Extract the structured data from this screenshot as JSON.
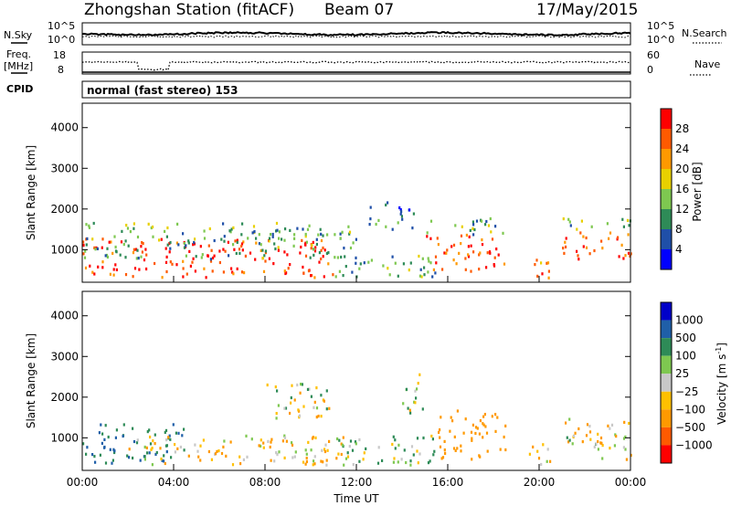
{
  "header": {
    "title": "Zhongshan Station (fitACF)",
    "beam": "Beam 07",
    "date": "17/May/2015"
  },
  "strip": {
    "nsky_label": "N.Sky",
    "nsky_ticks": [
      "10^5",
      "10^0"
    ],
    "nsearch_label": "N.Search",
    "nsearch_ticks": [
      "10^5",
      "10^0"
    ],
    "freq_label": "Freq.",
    "freq_unit": "[MHz]",
    "freq_ticks": [
      "18",
      "8"
    ],
    "nave_label": "Nave",
    "nave_ticks": [
      "60",
      "0"
    ],
    "cpid_label": "CPID",
    "cpid_value": "normal (fast stereo) 153"
  },
  "colors": {
    "power_scale": [
      "#0000ff",
      "#1f4fa8",
      "#2e8b57",
      "#7ec850",
      "#e8d000",
      "#ff9900",
      "#ff5a00",
      "#ff0000"
    ],
    "velocity_scale": [
      "#ff0000",
      "#ff5a00",
      "#ff9900",
      "#ffc000",
      "#c8c8c8",
      "#7ec850",
      "#2e8b57",
      "#1f5fa8",
      "#0000c8"
    ]
  },
  "chart_data": [
    {
      "type": "heatmap",
      "panel": "power",
      "ylabel": "Slant Range [km]",
      "ylim": [
        200,
        4600
      ],
      "y_ticks": [
        "1000",
        "2000",
        "3000",
        "4000"
      ],
      "x_ticks": [
        "00:00",
        "04:00",
        "08:00",
        "12:00",
        "16:00",
        "20:00",
        "00:00"
      ],
      "colorbar": {
        "label": "Power [dB]",
        "ticks": [
          "4",
          "8",
          "12",
          "16",
          "20",
          "24",
          "28"
        ]
      },
      "echo_regions": [
        {
          "t_start": 0.0,
          "t_end": 11.0,
          "range_start": 350,
          "range_end": 1300,
          "level": 28
        },
        {
          "t_start": 0.0,
          "t_end": 12.0,
          "range_start": 800,
          "range_end": 1700,
          "level": 12
        },
        {
          "t_start": 11.0,
          "t_end": 15.5,
          "range_start": 350,
          "range_end": 900,
          "level": 12
        },
        {
          "t_start": 12.5,
          "t_end": 14.5,
          "range_start": 1500,
          "range_end": 2200,
          "level": 8
        },
        {
          "t_start": 15.0,
          "t_end": 18.5,
          "range_start": 500,
          "range_end": 1400,
          "level": 26
        },
        {
          "t_start": 15.0,
          "t_end": 18.5,
          "range_start": 1400,
          "range_end": 1800,
          "level": 12
        },
        {
          "t_start": 19.5,
          "t_end": 20.5,
          "range_start": 250,
          "range_end": 900,
          "level": 24
        },
        {
          "t_start": 21.0,
          "t_end": 24.0,
          "range_start": 800,
          "range_end": 1500,
          "level": 26
        },
        {
          "t_start": 21.0,
          "t_end": 24.0,
          "range_start": 1500,
          "range_end": 1800,
          "level": 12
        }
      ]
    },
    {
      "type": "heatmap",
      "panel": "velocity",
      "xlabel": "Time UT",
      "ylabel": "Slant Range [km]",
      "ylim": [
        200,
        4600
      ],
      "y_ticks": [
        "1000",
        "2000",
        "3000",
        "4000"
      ],
      "x_ticks": [
        "00:00",
        "04:00",
        "08:00",
        "12:00",
        "16:00",
        "20:00",
        "00:00"
      ],
      "colorbar": {
        "label": "Velocity [m s",
        "label_sup": "-1",
        "label_end": "]",
        "ticks": [
          "1000",
          "500",
          "100",
          "25",
          "−25",
          "−100",
          "−500",
          "−1000"
        ]
      },
      "echo_regions": [
        {
          "t_start": 0.0,
          "t_end": 4.5,
          "range_start": 400,
          "range_end": 1400,
          "level": 500
        },
        {
          "t_start": 2.0,
          "t_end": 11.5,
          "range_start": 350,
          "range_end": 1100,
          "level": -100
        },
        {
          "t_start": 8.0,
          "t_end": 11.0,
          "range_start": 1500,
          "range_end": 2400,
          "level": 25
        },
        {
          "t_start": 11.0,
          "t_end": 15.5,
          "range_start": 350,
          "range_end": 1100,
          "level": 100
        },
        {
          "t_start": 14.0,
          "t_end": 15.0,
          "range_start": 1600,
          "range_end": 2600,
          "level": 25
        },
        {
          "t_start": 15.5,
          "t_end": 18.5,
          "range_start": 500,
          "range_end": 1700,
          "level": -300
        },
        {
          "t_start": 19.5,
          "t_end": 20.5,
          "range_start": 250,
          "range_end": 900,
          "level": -150
        },
        {
          "t_start": 21.0,
          "t_end": 24.0,
          "range_start": 500,
          "range_end": 1500,
          "level": -50
        }
      ]
    }
  ]
}
